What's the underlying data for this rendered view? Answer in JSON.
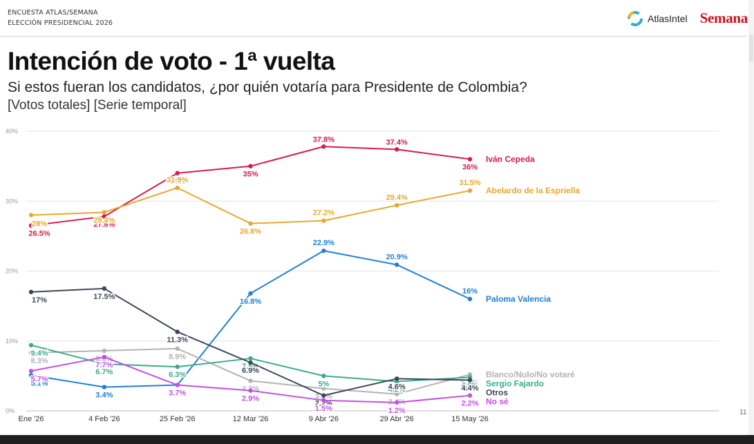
{
  "header": {
    "survey_line1": "ENCUESTA ATLAS/SEMANA",
    "survey_line2": "ELECCIÓN PRESIDENCIAL 2026",
    "atlas_logo_text": "AtlasIntel",
    "semana_logo_text": "Semana"
  },
  "title": "Intención de voto - 1ª vuelta",
  "subtitle": "Si estos fueran los candidatos, ¿por quién votaría para Presidente de Colombia?",
  "note": "[Votos totales] [Serie temporal]",
  "page_number": "11",
  "chart_data": {
    "type": "line",
    "categories": [
      "Ene '26",
      "4 Feb '26",
      "25 Feb '26",
      "12 Mar '26",
      "9 Abr '26",
      "29 Abr '26",
      "15 May '26"
    ],
    "ylim": [
      0,
      40
    ],
    "yticks": [
      "0%",
      "10%",
      "20%",
      "30%",
      "40%"
    ],
    "grid": true,
    "legend": "right-end labels",
    "series": [
      {
        "name": "Iván Cepeda",
        "color": "#d81b4a",
        "values": [
          26.5,
          27.8,
          34,
          35,
          37.8,
          37.4,
          36
        ],
        "labels": [
          "26.5%",
          "27.8%",
          "34%",
          "35%",
          "37.8%",
          "37.4%",
          "36%"
        ]
      },
      {
        "name": "Abelardo de la Espriella",
        "color": "#e8a82a",
        "values": [
          28,
          28.4,
          31.9,
          26.8,
          27.2,
          29.4,
          31.5
        ],
        "labels": [
          "28%",
          "28.4%",
          "31.9%",
          "26.8%",
          "27.2%",
          "29.4%",
          "31.5%"
        ]
      },
      {
        "name": "Paloma Valencia",
        "color": "#1f7fd6",
        "values": [
          5.1,
          3.4,
          3.7,
          16.8,
          22.9,
          20.9,
          16
        ],
        "labels": [
          "5.1%",
          "3.4%",
          "3.7%",
          "16.8%",
          "22.9%",
          "20.9%",
          "16%"
        ]
      },
      {
        "name": "Blanco/Nulo/No votaré",
        "color": "#b3b3b3",
        "values": [
          8.3,
          8.6,
          8.9,
          4.3,
          3.2,
          2.4,
          5.2
        ],
        "labels": [
          "8.3%",
          "8.6%",
          "8.9%",
          "4.3%",
          "3.2%",
          "2.4%",
          "5.2%"
        ]
      },
      {
        "name": "Sergio Fajardo",
        "color": "#3dab8a",
        "values": [
          9.4,
          6.7,
          6.3,
          7.5,
          5,
          4.2,
          4.8
        ],
        "labels": [
          "9.4%",
          "6.7%",
          "6.3%",
          "7.5%",
          "5%",
          "4.2%",
          "4.8%"
        ]
      },
      {
        "name": "Otros",
        "color": "#3c4658",
        "values": [
          17,
          17.5,
          11.3,
          6.9,
          2.2,
          4.6,
          4.4
        ],
        "labels": [
          "17%",
          "17.5%",
          "11.3%",
          "6.9%",
          "2.2%",
          "4.6%",
          "4.4%"
        ]
      },
      {
        "name": "No sé",
        "color": "#c44ee8",
        "values": [
          5.7,
          7.7,
          3.7,
          2.9,
          1.5,
          1.2,
          2.2
        ],
        "labels": [
          "5.7%",
          "7.7%",
          "3.7%",
          "2.9%",
          "1.5%",
          "1.2%",
          "2.2%"
        ]
      }
    ]
  }
}
